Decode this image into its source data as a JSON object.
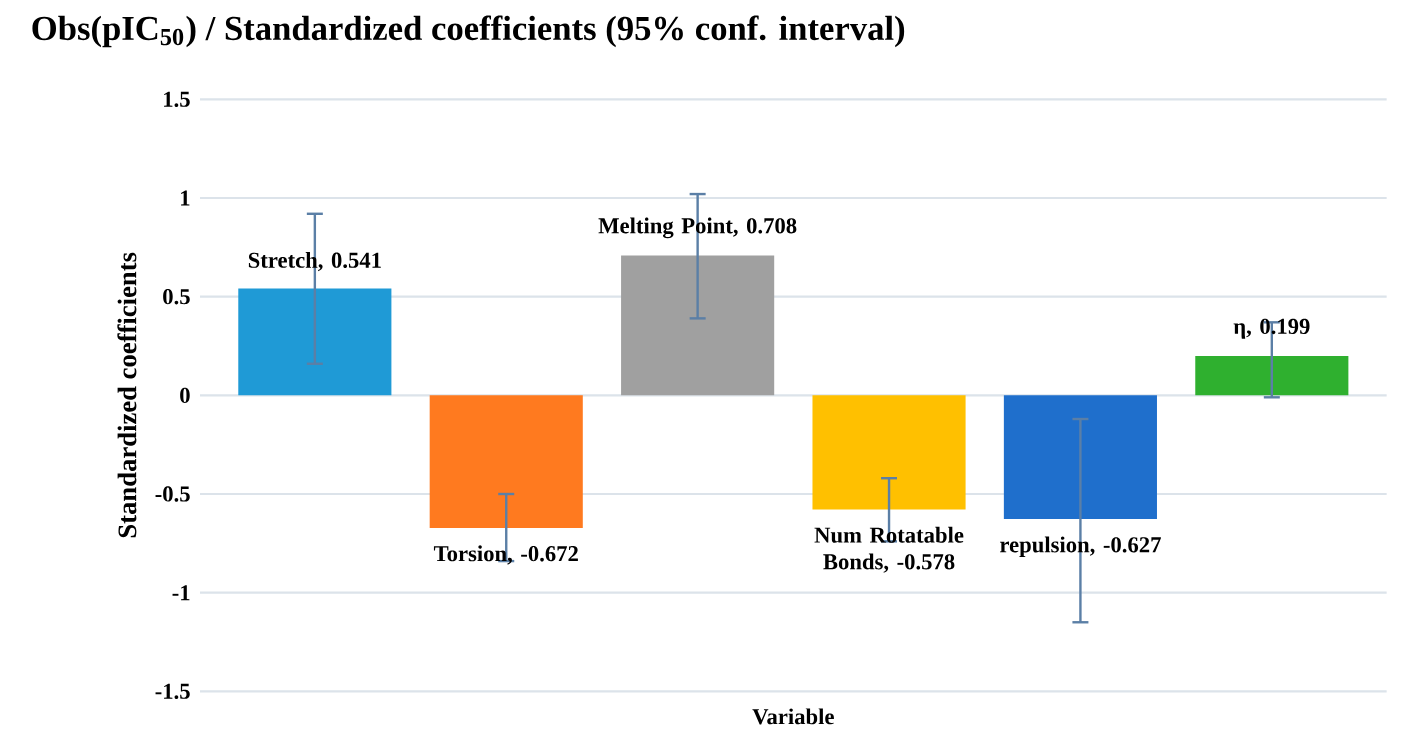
{
  "chart_data": {
    "type": "bar",
    "title": "Obs(pIC$_{50}$) / Standardized coefficients  (95% conf. interval)",
    "xlabel": "Variable",
    "ylabel": "Standardized coefficients",
    "categories": [
      null,
      null,
      null,
      null,
      null,
      null
    ],
    "values": [
      0.541,
      -0.672,
      0.708,
      -0.578,
      -0.627,
      0.199
    ],
    "colors": [
      "#1f9ad6",
      "#ff7a1f",
      "#a0a0a0",
      "#ffc000",
      "#1f6fcc",
      "#2fb02f"
    ],
    "errors": [
      [
        0.16,
        0.92
      ],
      [
        -0.84,
        -0.5
      ],
      [
        0.39,
        1.02
      ],
      [
        -0.74,
        -0.42
      ],
      [
        -1.15,
        -0.12
      ],
      [
        -0.01,
        0.37
      ]
    ],
    "value_labels": [
      "Stretch, 0.541",
      "Torsion, -0.672",
      "Melting Point, 0.708",
      "Num Rotatable Bonds, -0.578",
      "repulsion, -0.627",
      "η, 0.199"
    ],
    "ylim": [
      -1.5,
      1.5
    ],
    "yticks": [
      -1.5,
      -1,
      -0.5,
      0,
      0.5,
      1,
      1.5
    ],
    "grid": "y"
  }
}
